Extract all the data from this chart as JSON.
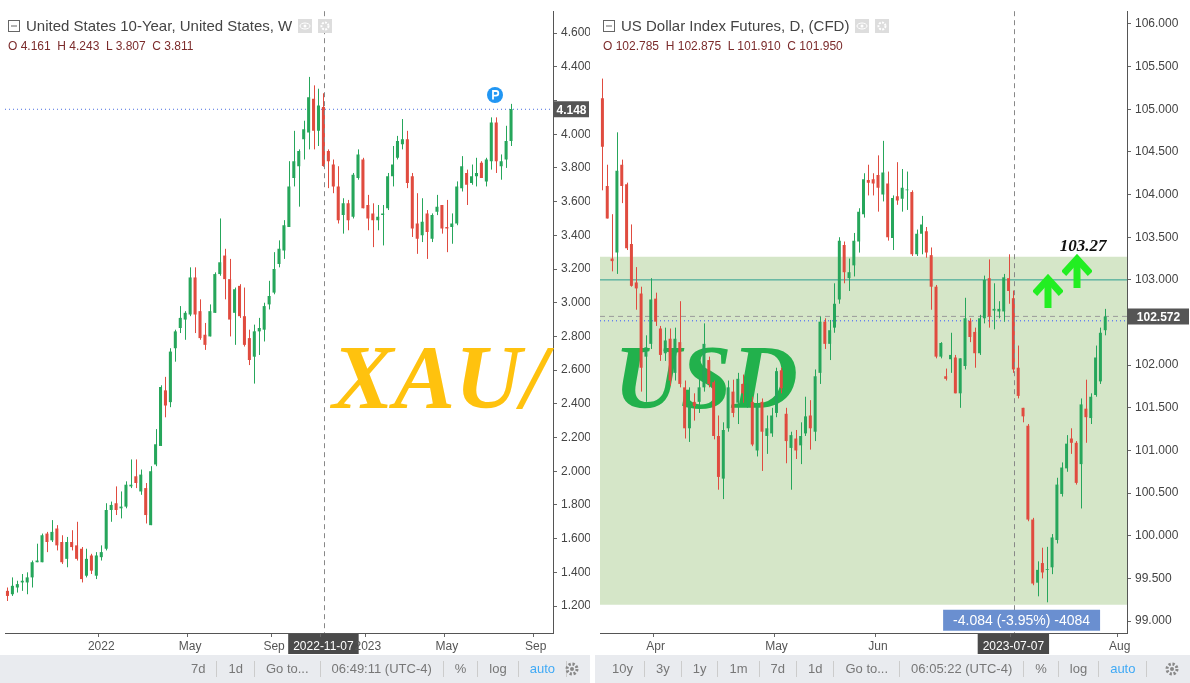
{
  "chart_data": [
    {
      "type": "candlestick",
      "title": "United States 10-Year, United States, W",
      "subtitle": "O 4.161  H 4.243  L 3.807  C 3.811",
      "categories": [
        null,
        null,
        null,
        null,
        null,
        null,
        null,
        null,
        null,
        null,
        null,
        null,
        null,
        null,
        null,
        null,
        null,
        null,
        null,
        "2022",
        null,
        null,
        null,
        null,
        null,
        null,
        null,
        null,
        null,
        null,
        null,
        null,
        null,
        null,
        null,
        null,
        null,
        "May",
        null,
        null,
        null,
        null,
        null,
        null,
        null,
        null,
        null,
        null,
        null,
        null,
        null,
        null,
        null,
        null,
        "Sep",
        null,
        null,
        null,
        null,
        null,
        null,
        null,
        null,
        null,
        "2022-11-07",
        null,
        null,
        null,
        null,
        null,
        null,
        null,
        null,
        "2023",
        null,
        null,
        null,
        null,
        null,
        null,
        null,
        null,
        null,
        null,
        null,
        null,
        null,
        null,
        null,
        "May",
        null,
        null,
        null,
        null,
        null,
        null,
        null,
        null,
        null,
        null,
        null,
        null,
        null,
        null,
        null,
        null,
        null,
        "Sep",
        null,
        null,
        null
      ],
      "ohlc": [
        [
          1.29,
          1.31,
          1.23,
          1.26
        ],
        [
          1.27,
          1.37,
          1.26,
          1.32
        ],
        [
          1.31,
          1.35,
          1.28,
          1.33
        ],
        [
          1.34,
          1.39,
          1.29,
          1.35
        ],
        [
          1.34,
          1.4,
          1.27,
          1.37
        ],
        [
          1.37,
          1.47,
          1.31,
          1.46
        ],
        [
          1.46,
          1.57,
          1.46,
          1.47
        ],
        [
          1.46,
          1.63,
          1.46,
          1.62
        ],
        [
          1.63,
          1.64,
          1.52,
          1.58
        ],
        [
          1.59,
          1.71,
          1.58,
          1.64
        ],
        [
          1.66,
          1.68,
          1.53,
          1.56
        ],
        [
          1.58,
          1.62,
          1.45,
          1.46
        ],
        [
          1.48,
          1.61,
          1.43,
          1.58
        ],
        [
          1.58,
          1.65,
          1.53,
          1.55
        ],
        [
          1.56,
          1.7,
          1.47,
          1.48
        ],
        [
          1.54,
          1.55,
          1.34,
          1.36
        ],
        [
          1.38,
          1.54,
          1.37,
          1.48
        ],
        [
          1.5,
          1.51,
          1.39,
          1.41
        ],
        [
          1.38,
          1.52,
          1.36,
          1.5
        ],
        [
          1.49,
          1.56,
          1.47,
          1.52
        ],
        [
          1.54,
          1.81,
          1.53,
          1.77
        ],
        [
          1.77,
          1.82,
          1.7,
          1.8
        ],
        [
          1.81,
          1.91,
          1.74,
          1.77
        ],
        [
          1.78,
          1.88,
          1.72,
          1.79
        ],
        [
          1.79,
          1.94,
          1.78,
          1.92
        ],
        [
          1.91,
          2.07,
          1.9,
          1.92
        ],
        [
          1.97,
          2.07,
          1.9,
          1.93
        ],
        [
          1.88,
          2.01,
          1.86,
          1.98
        ],
        [
          1.9,
          1.93,
          1.69,
          1.74
        ],
        [
          1.68,
          2.03,
          1.68,
          2.0
        ],
        [
          2.04,
          2.25,
          2.03,
          2.16
        ],
        [
          2.15,
          2.51,
          2.15,
          2.5
        ],
        [
          2.48,
          2.56,
          2.32,
          2.39
        ],
        [
          2.41,
          2.73,
          2.38,
          2.71
        ],
        [
          2.73,
          2.84,
          2.65,
          2.83
        ],
        [
          2.85,
          2.98,
          2.82,
          2.91
        ],
        [
          2.9,
          2.95,
          2.78,
          2.94
        ],
        [
          2.93,
          3.21,
          2.92,
          3.15
        ],
        [
          3.15,
          3.21,
          2.82,
          2.93
        ],
        [
          2.95,
          3.02,
          2.78,
          2.79
        ],
        [
          2.81,
          2.88,
          2.72,
          2.75
        ],
        [
          2.8,
          2.99,
          2.8,
          2.95
        ],
        [
          2.94,
          3.18,
          2.94,
          3.17
        ],
        [
          3.17,
          3.5,
          3.16,
          3.24
        ],
        [
          3.28,
          3.32,
          3.02,
          3.14
        ],
        [
          3.14,
          3.26,
          2.8,
          2.9
        ],
        [
          2.94,
          3.09,
          2.75,
          3.08
        ],
        [
          3.1,
          3.11,
          2.91,
          2.92
        ],
        [
          2.92,
          3.09,
          2.74,
          2.75
        ],
        [
          2.79,
          2.84,
          2.63,
          2.66
        ],
        [
          2.68,
          2.87,
          2.52,
          2.83
        ],
        [
          2.83,
          2.91,
          2.69,
          2.85
        ],
        [
          2.84,
          3.0,
          2.77,
          2.98
        ],
        [
          2.99,
          3.13,
          2.96,
          3.04
        ],
        [
          3.06,
          3.3,
          3.05,
          3.2
        ],
        [
          3.23,
          3.37,
          3.21,
          3.32
        ],
        [
          3.31,
          3.49,
          3.26,
          3.46
        ],
        [
          3.45,
          3.84,
          3.45,
          3.69
        ],
        [
          3.74,
          4.02,
          3.69,
          3.84
        ],
        [
          3.81,
          3.91,
          3.57,
          3.9
        ],
        [
          3.97,
          4.08,
          3.85,
          4.03
        ],
        [
          4.01,
          4.34,
          3.91,
          4.22
        ],
        [
          4.21,
          4.29,
          3.91,
          4.02
        ],
        [
          4.02,
          4.27,
          3.93,
          4.17
        ],
        [
          4.161,
          4.243,
          3.807,
          3.811
        ],
        [
          3.9,
          3.91,
          3.68,
          3.84
        ],
        [
          3.82,
          3.85,
          3.65,
          3.69
        ],
        [
          3.69,
          3.81,
          3.47,
          3.49
        ],
        [
          3.52,
          3.62,
          3.41,
          3.59
        ],
        [
          3.59,
          3.61,
          3.43,
          3.49
        ],
        [
          3.51,
          3.77,
          3.5,
          3.76
        ],
        [
          3.74,
          3.91,
          3.73,
          3.88
        ],
        [
          3.85,
          3.86,
          3.56,
          3.56
        ],
        [
          3.58,
          3.64,
          3.43,
          3.5
        ],
        [
          3.53,
          3.59,
          3.33,
          3.49
        ],
        [
          3.49,
          3.58,
          3.43,
          3.51
        ],
        [
          3.52,
          3.58,
          3.34,
          3.53
        ],
        [
          3.56,
          3.77,
          3.55,
          3.75
        ],
        [
          3.75,
          3.93,
          3.69,
          3.82
        ],
        [
          3.86,
          3.99,
          3.85,
          3.96
        ],
        [
          3.94,
          4.09,
          3.91,
          3.97
        ],
        [
          3.97,
          4.02,
          3.68,
          3.71
        ],
        [
          3.75,
          3.77,
          3.39,
          3.44
        ],
        [
          3.47,
          3.65,
          3.29,
          3.38
        ],
        [
          3.4,
          3.62,
          3.36,
          3.48
        ],
        [
          3.53,
          3.55,
          3.26,
          3.42
        ],
        [
          3.38,
          3.53,
          3.36,
          3.52
        ],
        [
          3.54,
          3.64,
          3.52,
          3.57
        ],
        [
          3.58,
          3.58,
          3.41,
          3.44
        ],
        [
          3.45,
          3.61,
          3.3,
          3.44
        ],
        [
          3.45,
          3.53,
          3.35,
          3.47
        ],
        [
          3.47,
          3.72,
          3.46,
          3.69
        ],
        [
          3.68,
          3.87,
          3.66,
          3.81
        ],
        [
          3.77,
          3.79,
          3.58,
          3.7
        ],
        [
          3.71,
          3.82,
          3.7,
          3.75
        ],
        [
          3.75,
          3.86,
          3.69,
          3.77
        ],
        [
          3.83,
          3.84,
          3.74,
          3.74
        ],
        [
          3.72,
          3.86,
          3.69,
          3.85
        ],
        [
          3.84,
          4.1,
          3.79,
          4.07
        ],
        [
          4.07,
          4.1,
          3.77,
          3.84
        ],
        [
          3.81,
          3.88,
          3.73,
          3.84
        ],
        [
          3.85,
          4.05,
          3.8,
          3.96
        ],
        [
          3.96,
          4.18,
          3.93,
          4.15
        ],
        null,
        null,
        null,
        null,
        null,
        null,
        null,
        null
      ],
      "colors": [
        "#e04b3f",
        "#26a65b",
        "#26a65b",
        "#26a65b",
        "#26a65b",
        "#26a65b",
        "#26a65b",
        "#26a65b",
        "#e04b3f",
        "#26a65b",
        "#e04b3f",
        "#e04b3f",
        "#26a65b",
        "#e04b3f",
        "#e04b3f",
        "#e04b3f",
        "#26a65b",
        "#e04b3f",
        "#26a65b",
        "#26a65b",
        "#26a65b",
        "#26a65b",
        "#e04b3f",
        "#26a65b",
        "#26a65b",
        "#26a65b",
        "#e04b3f",
        "#26a65b",
        "#e04b3f",
        "#26a65b",
        "#26a65b",
        "#26a65b",
        "#e04b3f",
        "#26a65b",
        "#26a65b",
        "#26a65b",
        "#26a65b",
        "#26a65b",
        "#e04b3f",
        "#e04b3f",
        "#e04b3f",
        "#26a65b",
        "#26a65b",
        "#26a65b",
        "#e04b3f",
        "#e04b3f",
        "#26a65b",
        "#e04b3f",
        "#e04b3f",
        "#e04b3f",
        "#26a65b",
        "#26a65b",
        "#26a65b",
        "#26a65b",
        "#26a65b",
        "#26a65b",
        "#26a65b",
        "#26a65b",
        "#26a65b",
        "#26a65b",
        "#26a65b",
        "#26a65b",
        "#e04b3f",
        "#26a65b",
        "#e04b3f",
        "#e04b3f",
        "#e04b3f",
        "#e04b3f",
        "#26a65b",
        "#e04b3f",
        "#26a65b",
        "#26a65b",
        "#e04b3f",
        "#e04b3f",
        "#e04b3f",
        "#26a65b",
        "#26a65b",
        "#26a65b",
        "#26a65b",
        "#26a65b",
        "#26a65b",
        "#e04b3f",
        "#e04b3f",
        "#e04b3f",
        "#26a65b",
        "#e04b3f",
        "#26a65b",
        "#26a65b",
        "#e04b3f",
        "#e04b3f",
        "#26a65b",
        "#26a65b",
        "#26a65b",
        "#e04b3f",
        "#26a65b",
        "#26a65b",
        "#e04b3f",
        "#26a65b",
        "#26a65b",
        "#e04b3f",
        "#26a65b",
        "#26a65b",
        "#26a65b",
        null,
        null,
        null,
        null,
        null,
        null,
        null,
        null
      ],
      "ylim": [
        1.04,
        4.73
      ],
      "yticks": [
        {
          "value": 1.2,
          "label": "1.200"
        },
        {
          "value": 1.4,
          "label": "1.400"
        },
        {
          "value": 1.6,
          "label": "1.600"
        },
        {
          "value": 1.8,
          "label": "1.800"
        },
        {
          "value": 2.0,
          "label": "2.000"
        },
        {
          "value": 2.2,
          "label": "2.200"
        },
        {
          "value": 2.4,
          "label": "2.400"
        },
        {
          "value": 2.6,
          "label": "2.600"
        },
        {
          "value": 2.8,
          "label": "2.800"
        },
        {
          "value": 3.0,
          "label": "3.000"
        },
        {
          "value": 3.2,
          "label": "3.200"
        },
        {
          "value": 3.4,
          "label": "3.400"
        },
        {
          "value": 3.6,
          "label": "3.600"
        },
        {
          "value": 3.8,
          "label": "3.800"
        },
        {
          "value": 4.0,
          "label": "4.000"
        },
        {
          "value": 4.2,
          "label": null
        },
        {
          "value": 4.4,
          "label": "4.400"
        },
        {
          "value": 4.6,
          "label": "4.600"
        }
      ],
      "ref_lines": [
        {
          "axis": "y",
          "value": 4.148,
          "label": "4.148",
          "color": "#4a6ee0",
          "line_style": "dotted"
        },
        {
          "axis": "x",
          "value": "2022-11-07",
          "color": "#888888",
          "line_style": "dashed"
        }
      ],
      "annotations": [
        {
          "text": "XAU/"
        },
        "7d",
        "1d",
        "Go to...",
        "06:49:11 (UTC-4)",
        "%",
        "log",
        "auto"
      ]
    },
    {
      "type": "candlestick",
      "title": "US Dollar Index Futures, D, (CFD)",
      "subtitle": "O 102.785  H 102.875  L 101.910  C 101.950",
      "categories": [
        null,
        null,
        null,
        null,
        null,
        null,
        null,
        null,
        null,
        null,
        null,
        "Apr",
        null,
        null,
        null,
        null,
        null,
        null,
        null,
        null,
        null,
        null,
        null,
        null,
        null,
        null,
        null,
        null,
        null,
        null,
        null,
        null,
        null,
        null,
        null,
        null,
        "May",
        null,
        null,
        null,
        null,
        null,
        null,
        null,
        null,
        null,
        null,
        null,
        null,
        null,
        null,
        null,
        null,
        null,
        null,
        null,
        null,
        "Jun",
        null,
        null,
        null,
        null,
        null,
        null,
        null,
        null,
        null,
        null,
        null,
        null,
        null,
        null,
        null,
        null,
        null,
        null,
        null,
        null,
        null,
        null,
        null,
        null,
        null,
        null,
        null,
        "2023-07-07",
        null,
        null,
        null,
        null,
        null,
        null,
        null,
        null,
        null,
        null,
        null,
        null,
        null,
        null,
        null,
        null,
        null,
        null,
        null,
        null,
        null,
        "Aug",
        null
      ],
      "ohlc": [
        [
          105.13,
          105.36,
          104.05,
          104.56
        ],
        [
          104.1,
          104.35,
          103.72,
          103.72
        ],
        [
          103.25,
          103.77,
          103.1,
          103.22
        ],
        [
          103.32,
          104.73,
          103.07,
          104.28
        ],
        [
          104.35,
          104.41,
          103.9,
          104.1
        ],
        [
          104.12,
          104.14,
          103.35,
          103.37
        ],
        [
          103.42,
          103.65,
          102.92,
          102.93
        ],
        [
          102.97,
          103.15,
          102.65,
          102.9
        ],
        [
          102.84,
          102.92,
          101.69,
          101.97
        ],
        [
          102.1,
          102.35,
          101.57,
          102.21
        ],
        [
          102.25,
          103.02,
          102.19,
          102.77
        ],
        [
          102.78,
          102.85,
          102.46,
          102.51
        ],
        [
          102.43,
          102.46,
          102.05,
          102.12
        ],
        [
          102.14,
          102.44,
          102.05,
          102.29
        ],
        [
          102.31,
          102.43,
          101.76,
          101.82
        ],
        [
          101.91,
          102.44,
          101.82,
          102.31
        ],
        [
          102.27,
          102.75,
          101.74,
          101.78
        ],
        [
          101.74,
          101.82,
          101.14,
          101.26
        ],
        [
          101.26,
          101.74,
          101.1,
          101.54
        ],
        [
          101.57,
          101.67,
          101.35,
          101.52
        ],
        [
          101.57,
          101.86,
          101.44,
          101.74
        ],
        [
          101.74,
          102.49,
          101.69,
          102.25
        ],
        [
          102.06,
          102.1,
          101.74,
          101.78
        ],
        [
          101.8,
          101.82,
          101.13,
          101.17
        ],
        [
          101.17,
          101.41,
          100.54,
          100.69
        ],
        [
          100.67,
          101.33,
          100.43,
          101.24
        ],
        [
          101.26,
          101.82,
          101.22,
          101.74
        ],
        [
          101.69,
          101.83,
          101.39,
          101.44
        ],
        [
          101.56,
          101.91,
          101.31,
          101.84
        ],
        [
          101.78,
          101.89,
          101.56,
          101.67
        ],
        [
          101.63,
          101.86,
          101.5,
          101.78
        ],
        [
          101.57,
          101.63,
          101.05,
          101.07
        ],
        [
          101.0,
          101.67,
          100.93,
          101.52
        ],
        [
          101.57,
          101.61,
          100.76,
          101.22
        ],
        [
          101.17,
          101.41,
          100.96,
          101.26
        ],
        [
          101.2,
          101.5,
          101.16,
          101.41
        ],
        [
          101.44,
          101.97,
          101.39,
          101.93
        ],
        [
          101.94,
          101.97,
          101.67,
          101.73
        ],
        [
          101.43,
          101.5,
          100.85,
          101.11
        ],
        [
          101.03,
          101.22,
          100.54,
          101.18
        ],
        [
          101.14,
          101.24,
          100.9,
          101.0
        ],
        [
          101.06,
          101.33,
          100.84,
          101.17
        ],
        [
          101.2,
          101.63,
          101.17,
          101.4
        ],
        [
          101.41,
          101.59,
          101.01,
          101.26
        ],
        [
          101.22,
          101.95,
          101.11,
          101.87
        ],
        [
          101.91,
          102.57,
          101.78,
          102.51
        ],
        [
          102.51,
          102.55,
          102.19,
          102.25
        ],
        [
          102.25,
          102.53,
          102.06,
          102.41
        ],
        [
          102.44,
          102.96,
          102.38,
          102.72
        ],
        [
          102.77,
          103.5,
          102.72,
          103.46
        ],
        [
          103.41,
          103.45,
          102.96,
          103.09
        ],
        [
          103.02,
          103.25,
          102.87,
          103.09
        ],
        [
          103.17,
          103.55,
          103.04,
          103.46
        ],
        [
          103.45,
          103.84,
          103.32,
          103.8
        ],
        [
          103.77,
          104.25,
          103.73,
          104.18
        ],
        [
          104.17,
          104.35,
          103.99,
          104.14
        ],
        [
          104.18,
          104.25,
          103.99,
          104.13
        ],
        [
          104.23,
          104.46,
          103.8,
          104.08
        ],
        [
          104.0,
          104.63,
          103.92,
          104.26
        ],
        [
          104.13,
          104.27,
          103.46,
          103.5
        ],
        [
          103.49,
          103.99,
          103.35,
          103.96
        ],
        [
          103.98,
          104.38,
          103.88,
          103.93
        ],
        [
          103.95,
          104.3,
          103.8,
          104.08
        ],
        [
          104.05,
          104.27,
          103.82,
          104.06
        ],
        [
          104.03,
          104.05,
          103.28,
          103.3
        ],
        [
          103.3,
          103.59,
          103.28,
          103.54
        ],
        [
          103.54,
          103.75,
          103.3,
          103.65
        ],
        [
          103.57,
          103.62,
          103.26,
          103.32
        ],
        [
          103.29,
          103.38,
          102.65,
          102.92
        ],
        [
          102.92,
          102.94,
          102.08,
          102.1
        ],
        [
          102.1,
          102.27,
          102.08,
          102.26
        ],
        [
          101.87,
          101.96,
          101.82,
          101.84
        ],
        [
          102.07,
          102.38,
          101.91,
          102.12
        ],
        [
          102.09,
          102.12,
          101.67,
          101.67
        ],
        [
          101.67,
          102.08,
          101.5,
          102.08
        ],
        [
          101.99,
          102.79,
          101.95,
          102.55
        ],
        [
          102.52,
          102.55,
          102.27,
          102.33
        ],
        [
          102.39,
          102.44,
          101.97,
          102.14
        ],
        [
          102.14,
          102.59,
          102.12,
          102.55
        ],
        [
          102.55,
          103.05,
          102.49,
          103.0
        ],
        [
          103.02,
          103.24,
          102.44,
          102.57
        ],
        [
          102.64,
          102.96,
          102.42,
          102.66
        ],
        [
          102.63,
          102.75,
          102.55,
          102.66
        ],
        [
          102.63,
          103.07,
          102.51,
          103.03
        ],
        [
          103.02,
          103.3,
          102.72,
          102.87
        ],
        [
          102.785,
          102.875,
          101.91,
          101.95
        ],
        [
          101.97,
          102.23,
          101.61,
          101.64
        ],
        [
          101.5,
          101.5,
          101.33,
          101.4
        ],
        [
          101.29,
          101.31,
          100.17,
          100.19
        ],
        [
          100.19,
          100.21,
          99.42,
          99.44
        ],
        [
          99.45,
          99.7,
          99.29,
          99.6
        ],
        [
          99.68,
          99.86,
          99.5,
          99.57
        ],
        [
          99.6,
          99.87,
          99.22,
          99.61
        ],
        [
          99.63,
          100.02,
          99.55,
          99.98
        ],
        [
          99.95,
          100.68,
          99.91,
          100.6
        ],
        [
          100.49,
          100.86,
          100.46,
          100.8
        ],
        [
          100.79,
          101.18,
          100.75,
          101.08
        ],
        [
          101.14,
          101.26,
          100.96,
          101.09
        ],
        [
          101.09,
          101.11,
          100.6,
          100.62
        ],
        [
          100.84,
          101.61,
          100.32,
          101.54
        ],
        [
          101.49,
          101.83,
          101.09,
          101.39
        ],
        [
          101.38,
          101.67,
          101.31,
          101.63
        ],
        [
          101.65,
          102.23,
          101.63,
          102.09
        ],
        [
          101.81,
          102.44,
          101.78,
          102.38
        ],
        [
          102.41,
          102.66,
          102.35,
          102.57
        ],
        null,
        null,
        null,
        null
      ],
      "colors": [
        "#e04b3f",
        "#e04b3f",
        "#e04b3f",
        "#26a65b",
        "#e04b3f",
        "#e04b3f",
        "#e04b3f",
        "#e04b3f",
        "#e04b3f",
        "#26a65b",
        "#26a65b",
        "#e04b3f",
        "#e04b3f",
        "#26a65b",
        "#e04b3f",
        "#26a65b",
        "#e04b3f",
        "#e04b3f",
        "#26a65b",
        "#e04b3f",
        "#26a65b",
        "#26a65b",
        "#e04b3f",
        "#e04b3f",
        "#e04b3f",
        "#26a65b",
        "#26a65b",
        "#e04b3f",
        "#26a65b",
        "#e04b3f",
        "#26a65b",
        "#e04b3f",
        "#26a65b",
        "#e04b3f",
        "#26a65b",
        "#26a65b",
        "#26a65b",
        "#e04b3f",
        "#e04b3f",
        "#26a65b",
        "#e04b3f",
        "#26a65b",
        "#26a65b",
        "#e04b3f",
        "#26a65b",
        "#26a65b",
        "#e04b3f",
        "#26a65b",
        "#26a65b",
        "#26a65b",
        "#e04b3f",
        "#26a65b",
        "#26a65b",
        "#26a65b",
        "#26a65b",
        "#e04b3f",
        "#e04b3f",
        "#e04b3f",
        "#26a65b",
        "#e04b3f",
        "#26a65b",
        "#e04b3f",
        "#26a65b",
        "#26a65b",
        "#e04b3f",
        "#26a65b",
        "#26a65b",
        "#e04b3f",
        "#e04b3f",
        "#e04b3f",
        "#26a65b",
        "#e04b3f",
        "#26a65b",
        "#e04b3f",
        "#26a65b",
        "#26a65b",
        "#e04b3f",
        "#e04b3f",
        "#26a65b",
        "#26a65b",
        "#e04b3f",
        "#26a65b",
        "#26a65b",
        "#26a65b",
        "#e04b3f",
        "#e04b3f",
        "#e04b3f",
        "#e04b3f",
        "#e04b3f",
        "#e04b3f",
        "#26a65b",
        "#e04b3f",
        "#26a65b",
        "#26a65b",
        "#26a65b",
        "#26a65b",
        "#26a65b",
        "#e04b3f",
        "#e04b3f",
        "#26a65b",
        "#e04b3f",
        "#26a65b",
        "#26a65b",
        "#26a65b",
        "#26a65b",
        null,
        null,
        null,
        null
      ],
      "ylim": [
        98.86,
        106.15
      ],
      "yticks": [
        {
          "value": 99,
          "label": "99.000"
        },
        {
          "value": 99.5,
          "label": "99.500"
        },
        {
          "value": 100,
          "label": "100.000"
        },
        {
          "value": 100.5,
          "label": "100.500"
        },
        {
          "value": 101,
          "label": "101.000"
        },
        {
          "value": 101.5,
          "label": "101.500"
        },
        {
          "value": 102,
          "label": "102.000"
        },
        {
          "value": 102.5,
          "label": null
        },
        {
          "value": 103,
          "label": "103.000"
        },
        {
          "value": 103.5,
          "label": "103.500"
        },
        {
          "value": 104,
          "label": "104.000"
        },
        {
          "value": 104.5,
          "label": "104.500"
        },
        {
          "value": 105,
          "label": "105.000"
        },
        {
          "value": 105.5,
          "label": "105.500"
        },
        {
          "value": 106,
          "label": "106.000"
        }
      ],
      "bands": [
        {
          "axis": "y",
          "from": 99.19,
          "to": 103.27,
          "label": "-4.084 (-3.95%) -4084",
          "color": "#d5e6c8"
        }
      ],
      "ref_lines": [
        {
          "axis": "y",
          "value": 103.0,
          "color": "#2a9d8f"
        },
        {
          "axis": "y",
          "value": 102.52,
          "color": "#3355ff",
          "line_style": "dotted"
        },
        {
          "axis": "y",
          "value": 102.572,
          "label": "102.572",
          "color": "#999999",
          "line_style": "dashed"
        },
        {
          "axis": "x",
          "value": "2023-07-07",
          "color": "#888888",
          "line_style": "dashed"
        }
      ],
      "annotations": [
        {
          "text": "USD"
        },
        {
          "text": "103.27",
          "y": 103.27
        },
        "10y",
        "3y",
        "1y",
        "1m",
        "7d",
        "1d",
        "Go to...",
        "06:05:22 (UTC-4)",
        "%",
        "log",
        "auto"
      ]
    }
  ]
}
